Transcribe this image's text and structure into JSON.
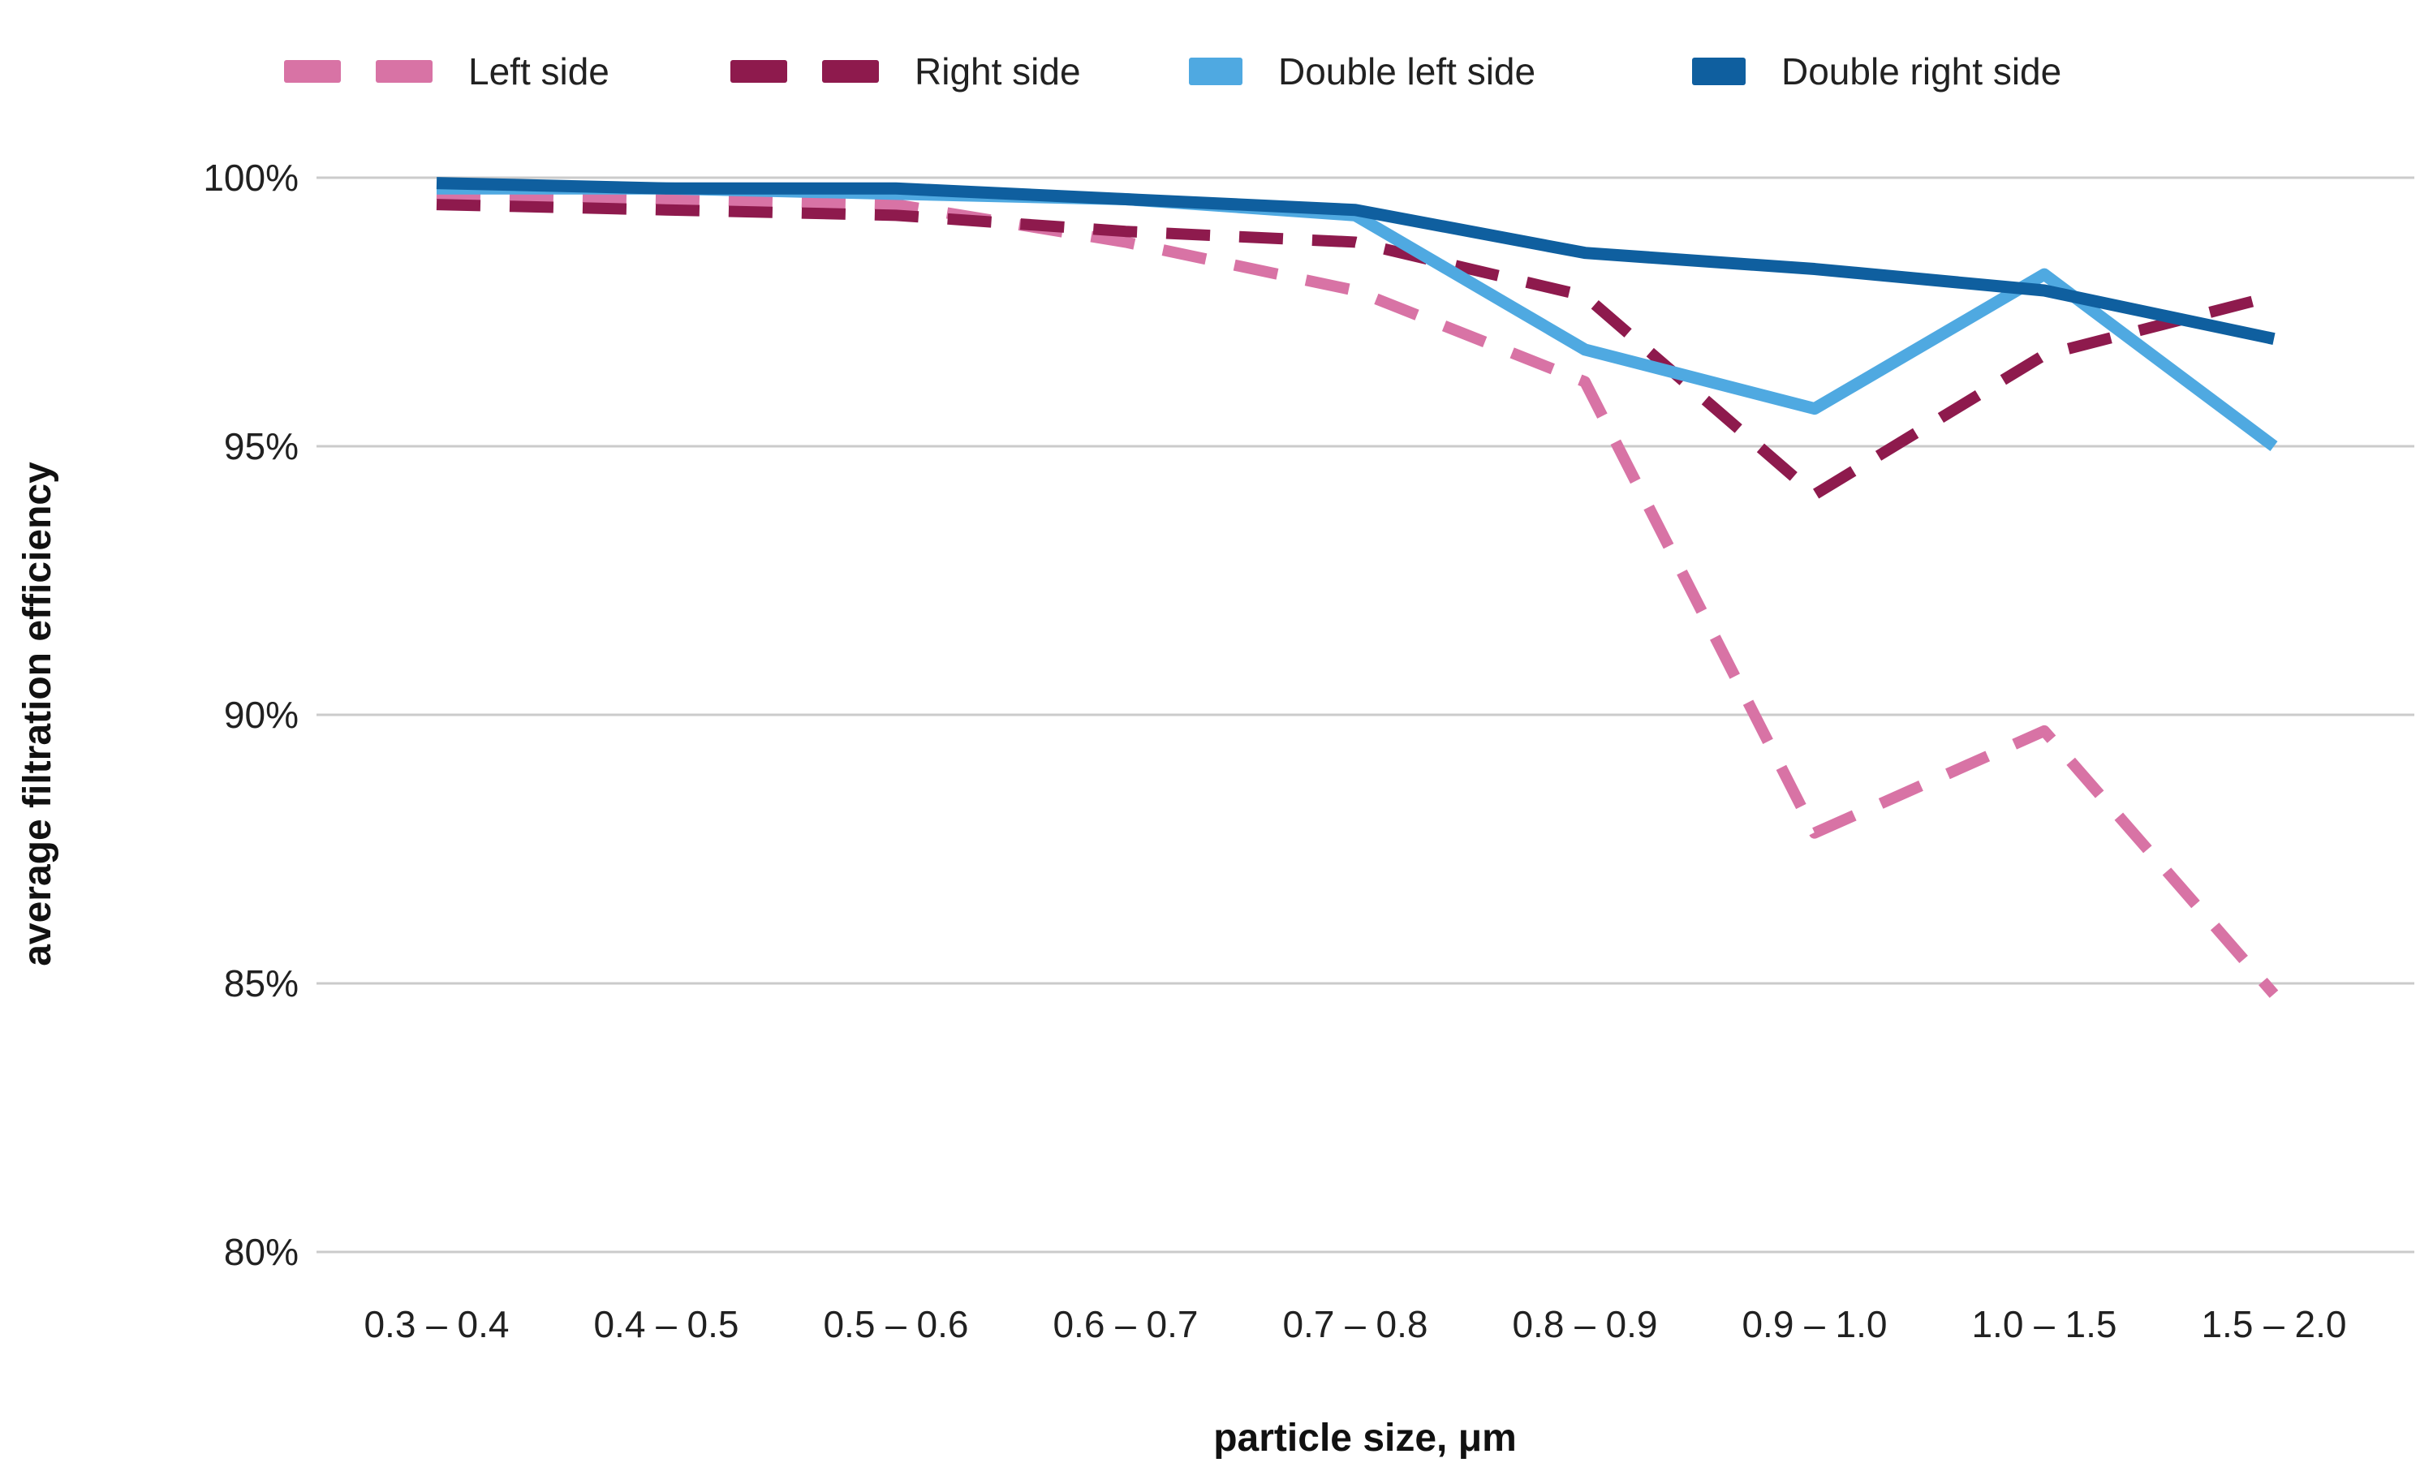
{
  "chart_data": {
    "type": "line",
    "title": "",
    "xlabel": "particle size, μm",
    "ylabel": "average filtration efficiency",
    "categories": [
      "0.3 – 0.4",
      "0.4 – 0.5",
      "0.5 – 0.6",
      "0.6 – 0.7",
      "0.7 – 0.8",
      "0.8 – 0.9",
      "0.9 – 1.0",
      "1.0 – 1.5",
      "1.5 – 2.0"
    ],
    "series": [
      {
        "name": "Left side",
        "color": "#D873A5",
        "dashed": true,
        "values": [
          99.7,
          99.6,
          99.5,
          98.8,
          97.9,
          96.2,
          87.8,
          89.7,
          84.8
        ]
      },
      {
        "name": "Right side",
        "color": "#8E1A4D",
        "dashed": true,
        "values": [
          99.5,
          99.4,
          99.3,
          99.0,
          98.8,
          97.8,
          94.1,
          96.7,
          97.8
        ]
      },
      {
        "name": "Double left side",
        "color": "#4FA9E1",
        "dashed": false,
        "values": [
          99.8,
          99.8,
          99.7,
          99.6,
          99.3,
          96.8,
          95.7,
          98.2,
          95.0
        ]
      },
      {
        "name": "Double right side",
        "color": "#0F5F9F",
        "dashed": false,
        "values": [
          99.9,
          99.8,
          99.8,
          99.6,
          99.4,
          98.6,
          98.3,
          97.9,
          97.0
        ]
      }
    ],
    "y_ticks": [
      {
        "label": "100%",
        "value": 100
      },
      {
        "label": "95%",
        "value": 95
      },
      {
        "label": "90%",
        "value": 90
      },
      {
        "label": "85%",
        "value": 85
      },
      {
        "label": "80%",
        "value": 80
      }
    ],
    "ylim": [
      80,
      100
    ],
    "grid": "horizontal-only",
    "legend_position": "top",
    "colors": {
      "gridline": "#CBCBCB",
      "text": "#212121",
      "background": "#FFFFFF"
    }
  }
}
